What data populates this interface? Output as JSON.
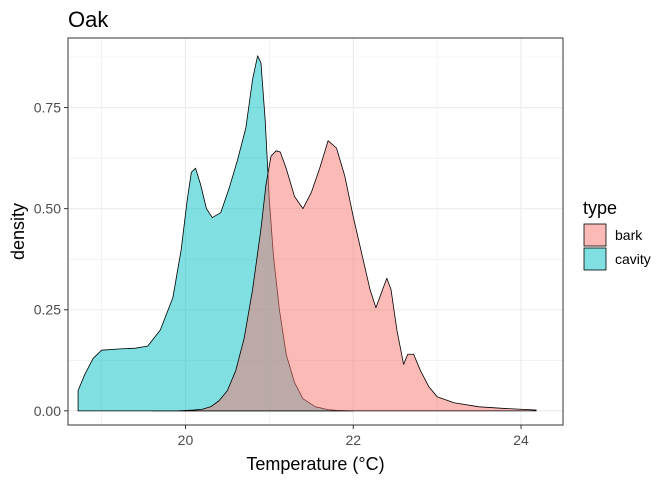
{
  "chart_data": {
    "type": "area",
    "title": "Oak",
    "xlabel": "Temperature (°C)",
    "ylabel": "density",
    "xlim": [
      18.6,
      24.5
    ],
    "ylim": [
      -0.035,
      0.922
    ],
    "x_ticks": [
      20,
      22,
      24
    ],
    "x_minor_ticks": [
      19,
      21,
      23
    ],
    "y_ticks": [
      0.0,
      0.25,
      0.5,
      0.75
    ],
    "y_tick_labels": [
      "0.00",
      "0.25",
      "0.50",
      "0.75"
    ],
    "y_minor_ticks": [
      0.125,
      0.375,
      0.625,
      0.875
    ],
    "grid": true,
    "legend": {
      "title": "type",
      "position": "right"
    },
    "series": [
      {
        "name": "bark",
        "color": "#f8766d",
        "points": [
          [
            19.6,
            0.0
          ],
          [
            19.9,
            0.0
          ],
          [
            20.1,
            0.002
          ],
          [
            20.2,
            0.004
          ],
          [
            20.3,
            0.01
          ],
          [
            20.4,
            0.025
          ],
          [
            20.5,
            0.05
          ],
          [
            20.6,
            0.1
          ],
          [
            20.7,
            0.18
          ],
          [
            20.8,
            0.3
          ],
          [
            20.9,
            0.45
          ],
          [
            20.96,
            0.56
          ],
          [
            21.02,
            0.63
          ],
          [
            21.08,
            0.643
          ],
          [
            21.13,
            0.64
          ],
          [
            21.2,
            0.6
          ],
          [
            21.3,
            0.53
          ],
          [
            21.4,
            0.5
          ],
          [
            21.5,
            0.54
          ],
          [
            21.6,
            0.6
          ],
          [
            21.7,
            0.668
          ],
          [
            21.8,
            0.65
          ],
          [
            21.9,
            0.58
          ],
          [
            22.0,
            0.48
          ],
          [
            22.1,
            0.39
          ],
          [
            22.2,
            0.3
          ],
          [
            22.27,
            0.255
          ],
          [
            22.35,
            0.3
          ],
          [
            22.4,
            0.328
          ],
          [
            22.45,
            0.3
          ],
          [
            22.52,
            0.2
          ],
          [
            22.6,
            0.115
          ],
          [
            22.65,
            0.14
          ],
          [
            22.72,
            0.14
          ],
          [
            22.8,
            0.1
          ],
          [
            22.9,
            0.06
          ],
          [
            23.0,
            0.035
          ],
          [
            23.2,
            0.02
          ],
          [
            23.5,
            0.01
          ],
          [
            23.8,
            0.006
          ],
          [
            24.0,
            0.004
          ],
          [
            24.18,
            0.002
          ]
        ]
      },
      {
        "name": "cavity",
        "color": "#00bfc4",
        "points": [
          [
            18.72,
            0.05
          ],
          [
            18.8,
            0.09
          ],
          [
            18.9,
            0.13
          ],
          [
            19.0,
            0.15
          ],
          [
            19.2,
            0.153
          ],
          [
            19.4,
            0.155
          ],
          [
            19.55,
            0.16
          ],
          [
            19.7,
            0.2
          ],
          [
            19.85,
            0.28
          ],
          [
            19.95,
            0.4
          ],
          [
            20.02,
            0.52
          ],
          [
            20.07,
            0.59
          ],
          [
            20.12,
            0.6
          ],
          [
            20.18,
            0.56
          ],
          [
            20.25,
            0.5
          ],
          [
            20.32,
            0.478
          ],
          [
            20.42,
            0.49
          ],
          [
            20.52,
            0.55
          ],
          [
            20.62,
            0.62
          ],
          [
            20.72,
            0.7
          ],
          [
            20.8,
            0.82
          ],
          [
            20.86,
            0.878
          ],
          [
            20.9,
            0.86
          ],
          [
            20.95,
            0.72
          ],
          [
            21.0,
            0.52
          ],
          [
            21.05,
            0.38
          ],
          [
            21.12,
            0.25
          ],
          [
            21.2,
            0.14
          ],
          [
            21.3,
            0.07
          ],
          [
            21.4,
            0.03
          ],
          [
            21.55,
            0.01
          ],
          [
            21.7,
            0.003
          ],
          [
            21.8,
            0.001
          ],
          [
            22.0,
            0.0
          ]
        ]
      }
    ]
  }
}
